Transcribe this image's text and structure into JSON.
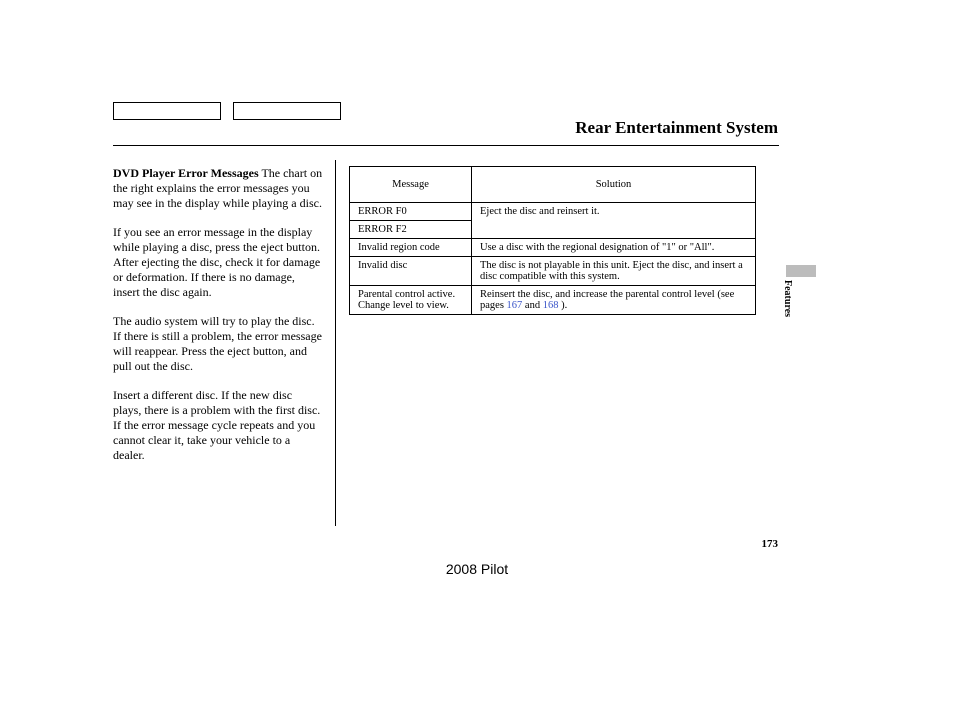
{
  "header": {
    "page_title": "Rear Entertainment System"
  },
  "column": {
    "subhead": "DVD Player Error Messages",
    "p1_rest": "The chart on the right explains the error messages you may see in the display while playing a disc.",
    "p2": "If you see an error message in the display while playing a disc, press the eject button. After ejecting the disc, check it for damage or deformation. If there is no damage, insert the disc again.",
    "p3": "The audio system will try to play the disc. If there is still a problem, the error message will reappear. Press the eject button, and pull out the disc.",
    "p4": "Insert a different disc. If the new disc plays, there is a problem with the first disc. If the error message cycle repeats and you cannot clear it, take your vehicle to a dealer."
  },
  "error_table": {
    "type": "table",
    "columns": [
      "Message",
      "Solution"
    ],
    "border_color": "#000000",
    "background_color": "#ffffff",
    "font_size": 10.5,
    "rows": [
      {
        "message": "ERROR F0",
        "solution": "Eject the disc and reinsert it.",
        "rowspan_solution": 2
      },
      {
        "message": "ERROR F2",
        "solution": null
      },
      {
        "message": "Invalid region code",
        "solution": "Use a disc with the regional designation of \"1\" or \"All\"."
      },
      {
        "message": "Invalid disc",
        "solution": "The disc is not playable in this unit. Eject the disc, and insert a disc compatible with this system."
      },
      {
        "message": "Parental control active. Change level to view.",
        "solution_prefix": "Reinsert the disc, and increase the parental control level (see pages ",
        "link1": "167",
        "mid": " and ",
        "link2": "168",
        "suffix": " ).",
        "has_links": true
      }
    ],
    "link_color": "#3a55c9"
  },
  "side": {
    "tab_label": "Features",
    "tab_color": "#bcbcbc"
  },
  "footer": {
    "page_number": "173",
    "model": "2008  Pilot"
  }
}
